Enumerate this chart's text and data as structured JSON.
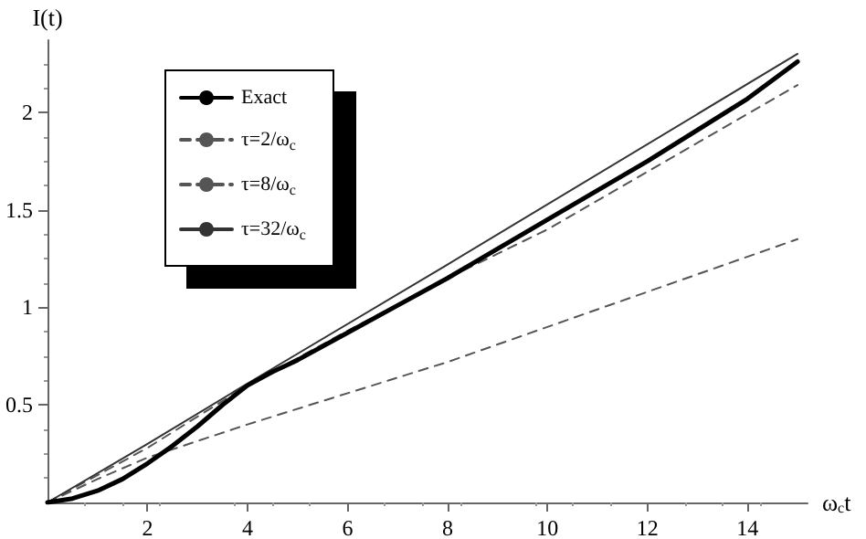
{
  "chart_data": {
    "type": "line",
    "xlabel": "ω$_{c}$t",
    "ylabel": "I(t)",
    "xlim": [
      0,
      15.2
    ],
    "ylim": [
      0,
      2.37
    ],
    "xticks": [
      2,
      4,
      6,
      8,
      10,
      12,
      14
    ],
    "yticks": [
      0.5,
      1,
      1.5,
      2
    ],
    "grid": false,
    "legend": "top left",
    "marker": "none",
    "series": [
      {
        "name": "Exact",
        "color": "#000000",
        "line_style": "solid",
        "x": [
          0,
          0.5,
          1,
          1.5,
          2,
          2.5,
          3,
          3.5,
          4,
          4.5,
          5,
          6,
          7,
          8,
          9,
          10,
          12,
          14,
          15
        ],
        "values": [
          0,
          0.02,
          0.06,
          0.12,
          0.2,
          0.29,
          0.39,
          0.5,
          0.6,
          0.67,
          0.73,
          0.87,
          1.01,
          1.15,
          1.3,
          1.45,
          1.75,
          2.07,
          2.26
        ]
      },
      {
        "name": "τ=2/ω$_{c}$",
        "color": "#555555",
        "line_style": "dashed",
        "x": [
          0,
          1,
          2,
          4,
          8,
          15
        ],
        "values": [
          0,
          0.12,
          0.23,
          0.4,
          0.72,
          1.35
        ]
      },
      {
        "name": "τ=8/ω$_{c}$",
        "color": "#555555",
        "line_style": "dashed",
        "x": [
          0,
          2,
          4,
          6,
          8,
          10,
          15
        ],
        "values": [
          0,
          0.28,
          0.6,
          0.88,
          1.15,
          1.4,
          2.14
        ]
      },
      {
        "name": "τ=32/ω$_{c}$",
        "color": "#333333",
        "line_style": "solid",
        "x": [
          0,
          2,
          4,
          8,
          15
        ],
        "values": [
          0,
          0.3,
          0.61,
          1.22,
          2.3
        ]
      }
    ]
  }
}
